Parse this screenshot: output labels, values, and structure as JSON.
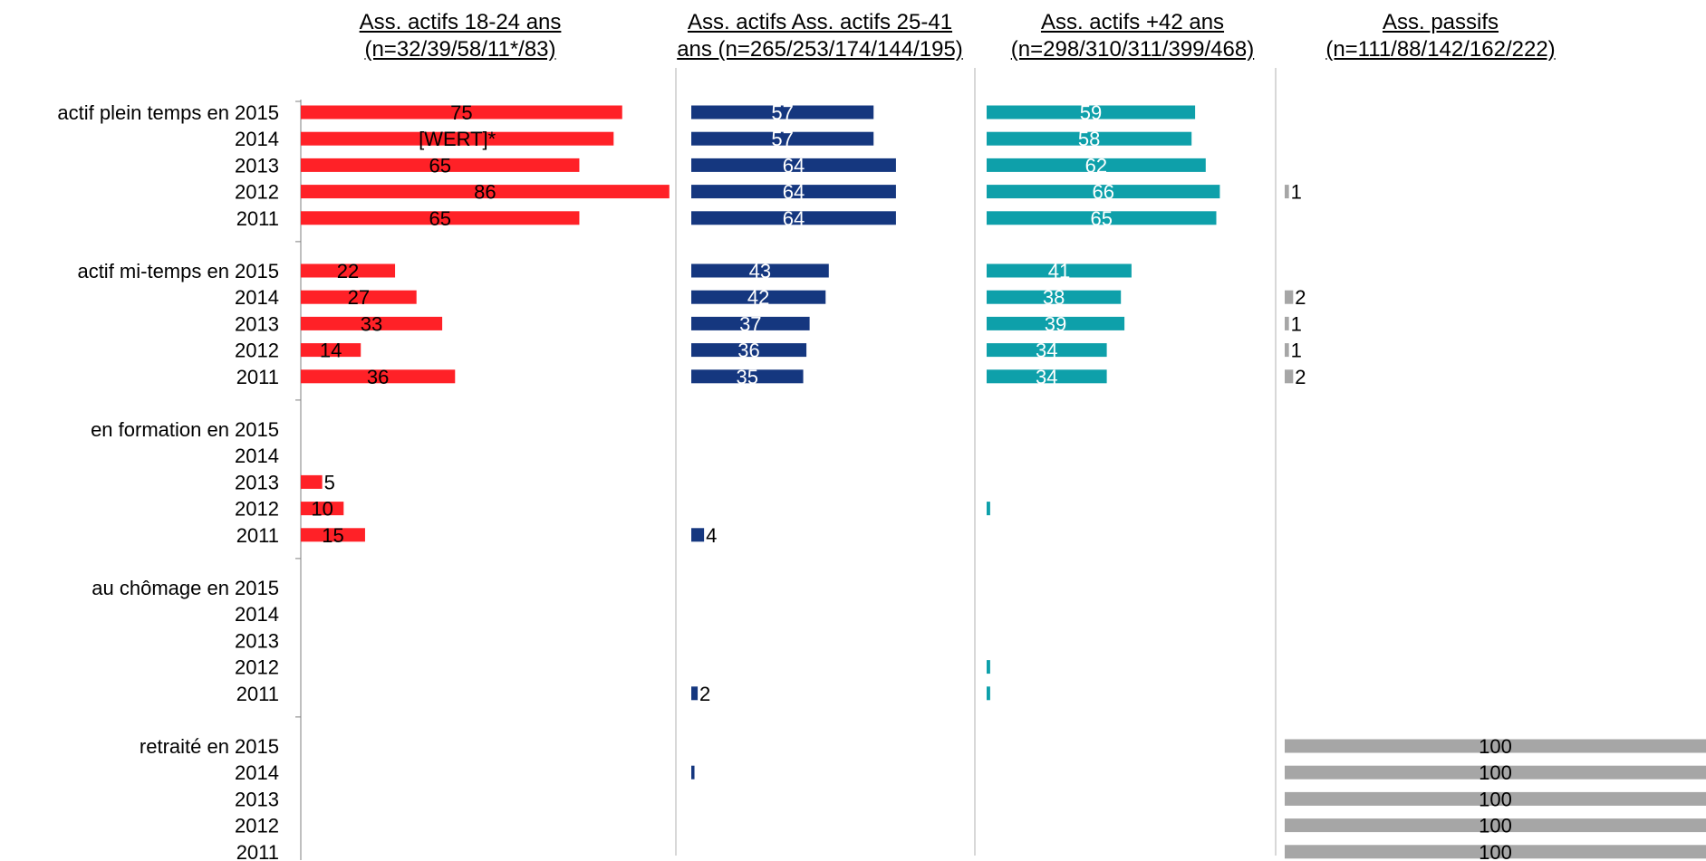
{
  "chart_data": {
    "type": "bar",
    "orientation": "horizontal",
    "panels": [
      {
        "title_line1": "Ass. actifs 18-24 ans",
        "title_line2": "(n=32/39/58/11*/83)",
        "color": "#ff2127",
        "label_color": "#000000"
      },
      {
        "title_line1": "Ass. actifs Ass. actifs 25-41",
        "title_line2": "ans (n=265/253/174/144/195)",
        "color": "#15377f",
        "label_color": "#ffffff"
      },
      {
        "title_line1": "Ass. actifs +42 ans",
        "title_line2": "(n=298/310/311/399/468)",
        "color": "#0ea0aa",
        "label_color": "#ffffff"
      },
      {
        "title_line1": "Ass. passifs",
        "title_line2": "(n=111/88/142/162/222)",
        "color": "#a6a6a6",
        "label_color": "#000000"
      }
    ],
    "categories": [
      {
        "rows": [
          "actif plein temps en 2015",
          "2014",
          "2013",
          "2012",
          "2011"
        ]
      },
      {
        "rows": [
          "actif mi-temps en 2015",
          "2014",
          "2013",
          "2012",
          "2011"
        ]
      },
      {
        "rows": [
          "en formation en 2015",
          "2014",
          "2013",
          "2012",
          "2011"
        ]
      },
      {
        "rows": [
          "au chômage en 2015",
          "2014",
          "2013",
          "2012",
          "2011"
        ]
      },
      {
        "rows": [
          "retraité en 2015",
          "2014",
          "2013",
          "2012",
          "2011"
        ]
      }
    ],
    "values": [
      [
        [
          75,
          73,
          65,
          86,
          65
        ],
        [
          22,
          27,
          33,
          14,
          36
        ],
        [
          0,
          0,
          5,
          10,
          15
        ],
        [
          0,
          0,
          0,
          0,
          0
        ],
        [
          0,
          0,
          0,
          0,
          0
        ]
      ],
      [
        [
          57,
          57,
          64,
          64,
          64
        ],
        [
          43,
          42,
          37,
          36,
          35
        ],
        [
          0,
          0,
          0,
          0,
          4
        ],
        [
          0,
          0,
          0,
          0,
          2
        ],
        [
          0,
          1,
          0,
          0,
          0
        ]
      ],
      [
        [
          59,
          58,
          62,
          66,
          65
        ],
        [
          41,
          38,
          39,
          34,
          34
        ],
        [
          0,
          0,
          0,
          1,
          0
        ],
        [
          0,
          0,
          0,
          1,
          1
        ],
        [
          0,
          0,
          0,
          0,
          0
        ]
      ],
      [
        [
          0,
          0,
          0,
          1,
          0
        ],
        [
          0,
          2,
          1,
          1,
          2
        ],
        [
          0,
          0,
          0,
          0,
          0
        ],
        [
          0,
          0,
          0,
          0,
          0
        ],
        [
          100,
          100,
          100,
          100,
          100
        ]
      ]
    ],
    "labels": [
      [
        [
          "75",
          "[WERT]*",
          "65",
          "86",
          "65"
        ],
        [
          "22",
          "27",
          "33",
          "14",
          "36"
        ],
        [
          "",
          "",
          "5",
          "10",
          "15"
        ],
        [
          "",
          "",
          "",
          "",
          ""
        ],
        [
          "",
          "",
          "",
          "",
          ""
        ]
      ],
      [
        [
          "57",
          "57",
          "64",
          "64",
          "64"
        ],
        [
          "43",
          "42",
          "37",
          "36",
          "35"
        ],
        [
          "",
          "",
          "",
          "",
          "4"
        ],
        [
          "",
          "",
          "",
          "",
          "2"
        ],
        [
          "",
          "",
          "",
          "",
          ""
        ]
      ],
      [
        [
          "59",
          "58",
          "62",
          "66",
          "65"
        ],
        [
          "41",
          "38",
          "39",
          "34",
          "34"
        ],
        [
          "",
          "",
          "",
          "",
          ""
        ],
        [
          "",
          "",
          "",
          "",
          ""
        ],
        [
          "",
          "",
          "",
          "",
          ""
        ]
      ],
      [
        [
          "",
          "",
          "",
          "1",
          ""
        ],
        [
          "",
          "2",
          "1",
          "1",
          "2"
        ],
        [
          "",
          "",
          "",
          "",
          ""
        ],
        [
          "",
          "",
          "",
          "",
          ""
        ],
        [
          "100",
          "100",
          "100",
          "100",
          "100"
        ]
      ]
    ],
    "xlim": [
      0,
      100
    ],
    "grid": false,
    "legend": "none"
  }
}
